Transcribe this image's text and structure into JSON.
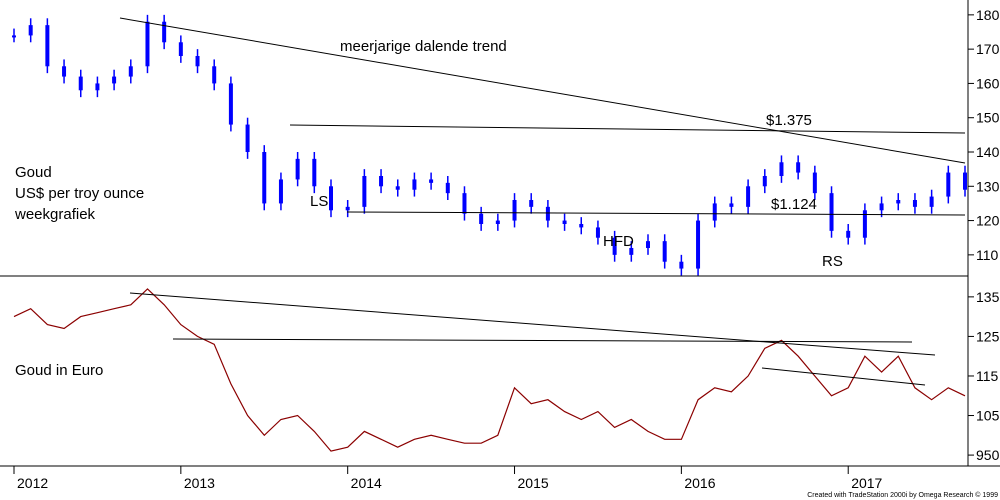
{
  "chart_data": [
    {
      "type": "candlestick",
      "id": "gold_usd",
      "label_lines": [
        "Goud",
        "US$ per troy ounce",
        "weekgrafiek"
      ],
      "y_axis_ticks": [
        "110",
        "120",
        "130",
        "140",
        "150",
        "160",
        "170",
        "180"
      ],
      "ylim": [
        1050,
        1820
      ],
      "color": "#0000ff",
      "annotations": {
        "trend": "meerjarige dalende trend",
        "high": "$1.375",
        "low": "$1.124",
        "left_shoulder": "LS",
        "head": "HFD",
        "right_shoulder": "RS"
      },
      "series": {
        "x": [
          2012.0,
          2012.1,
          2012.2,
          2012.3,
          2012.4,
          2012.5,
          2012.6,
          2012.7,
          2012.8,
          2012.9,
          2013.0,
          2013.1,
          2013.2,
          2013.3,
          2013.4,
          2013.5,
          2013.6,
          2013.7,
          2013.8,
          2013.9,
          2014.0,
          2014.1,
          2014.2,
          2014.3,
          2014.4,
          2014.5,
          2014.6,
          2014.7,
          2014.8,
          2014.9,
          2015.0,
          2015.1,
          2015.2,
          2015.3,
          2015.4,
          2015.5,
          2015.6,
          2015.7,
          2015.8,
          2015.9,
          2016.0,
          2016.1,
          2016.2,
          2016.3,
          2016.4,
          2016.5,
          2016.6,
          2016.7,
          2016.8,
          2016.9,
          2017.0,
          2017.1,
          2017.2,
          2017.3,
          2017.4,
          2017.5,
          2017.6,
          2017.7
        ],
        "close": [
          1740,
          1770,
          1650,
          1620,
          1580,
          1600,
          1620,
          1650,
          1780,
          1720,
          1680,
          1650,
          1600,
          1480,
          1400,
          1250,
          1320,
          1380,
          1300,
          1230,
          1240,
          1330,
          1300,
          1290,
          1320,
          1310,
          1280,
          1220,
          1190,
          1200,
          1260,
          1240,
          1200,
          1190,
          1180,
          1150,
          1100,
          1120,
          1140,
          1080,
          1060,
          1200,
          1250,
          1240,
          1300,
          1330,
          1370,
          1340,
          1280,
          1170,
          1150,
          1230,
          1250,
          1260,
          1240,
          1270,
          1340,
          1290
        ]
      }
    },
    {
      "type": "line",
      "id": "gold_eur",
      "label": "Goud in Euro",
      "y_axis_ticks": [
        "950",
        "105",
        "115",
        "125",
        "135"
      ],
      "ylim": [
        930,
        1380
      ],
      "color": "#8b0000",
      "series": {
        "x": [
          2012.0,
          2012.1,
          2012.2,
          2012.3,
          2012.4,
          2012.5,
          2012.6,
          2012.7,
          2012.8,
          2012.9,
          2013.0,
          2013.1,
          2013.2,
          2013.3,
          2013.4,
          2013.5,
          2013.6,
          2013.7,
          2013.8,
          2013.9,
          2014.0,
          2014.1,
          2014.2,
          2014.3,
          2014.4,
          2014.5,
          2014.6,
          2014.7,
          2014.8,
          2014.9,
          2015.0,
          2015.1,
          2015.2,
          2015.3,
          2015.4,
          2015.5,
          2015.6,
          2015.7,
          2015.8,
          2015.9,
          2016.0,
          2016.1,
          2016.2,
          2016.3,
          2016.4,
          2016.5,
          2016.6,
          2016.7,
          2016.8,
          2016.9,
          2017.0,
          2017.1,
          2017.2,
          2017.3,
          2017.4,
          2017.5,
          2017.6,
          2017.7
        ],
        "values": [
          1300,
          1320,
          1280,
          1270,
          1300,
          1310,
          1320,
          1330,
          1370,
          1330,
          1280,
          1250,
          1230,
          1130,
          1050,
          1000,
          1040,
          1050,
          1010,
          960,
          970,
          1010,
          990,
          970,
          990,
          1000,
          990,
          980,
          980,
          1000,
          1120,
          1080,
          1090,
          1060,
          1040,
          1060,
          1020,
          1040,
          1010,
          990,
          990,
          1090,
          1120,
          1110,
          1150,
          1220,
          1240,
          1200,
          1150,
          1100,
          1120,
          1200,
          1160,
          1200,
          1120,
          1090,
          1120,
          1100
        ]
      }
    }
  ],
  "x_axis": {
    "labels": [
      "2012",
      "2013",
      "2014",
      "2015",
      "2016",
      "2017"
    ]
  },
  "footer": {
    "credit": "Created with TradeStation 2000i by Omega Research © 1999"
  }
}
